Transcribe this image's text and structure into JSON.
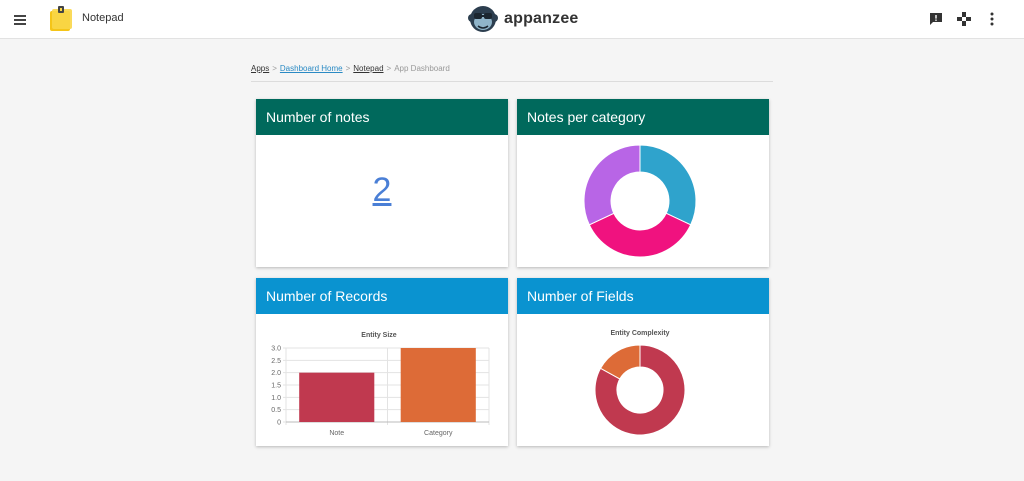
{
  "header": {
    "app_name": "Notepad",
    "brand_name": "appanzee",
    "icons": [
      "menu-icon",
      "feedback-icon",
      "gamepad-icon",
      "more-vert-icon"
    ]
  },
  "breadcrumb": {
    "items": [
      "Apps",
      "Dashboard Home",
      "Notepad"
    ],
    "separator": ">",
    "current": "App Dashboard"
  },
  "cards": {
    "notes": {
      "title": "Number of notes",
      "value": "2"
    },
    "categories": {
      "title": "Notes per category"
    },
    "records": {
      "title": "Number of Records"
    },
    "fields": {
      "title": "Number of Fields"
    }
  },
  "colors": {
    "header_green": "#00695c",
    "header_blue": "#0a93d0",
    "link_blue": "#4a7fd6"
  },
  "chart_data": [
    {
      "type": "pie",
      "title": "",
      "donut": true,
      "slices": [
        {
          "value": 32,
          "color": "#2fa3cc"
        },
        {
          "value": 36,
          "color": "#f0127f"
        },
        {
          "value": 32,
          "color": "#b865e6"
        }
      ]
    },
    {
      "type": "bar",
      "title": "Entity Size",
      "categories": [
        "Note",
        "Category"
      ],
      "values": [
        2,
        3
      ],
      "colors": [
        "#c0394f",
        "#dd6b37"
      ],
      "ylim": [
        0,
        3
      ],
      "yticks": [
        "0",
        "0.5",
        "1.0",
        "1.5",
        "2.0",
        "2.5",
        "3.0"
      ],
      "grid": true
    },
    {
      "type": "pie",
      "title": "Entity Complexity",
      "donut": true,
      "slices": [
        {
          "value": 83,
          "color": "#c0394f"
        },
        {
          "value": 17,
          "color": "#dd6b37"
        }
      ]
    }
  ]
}
